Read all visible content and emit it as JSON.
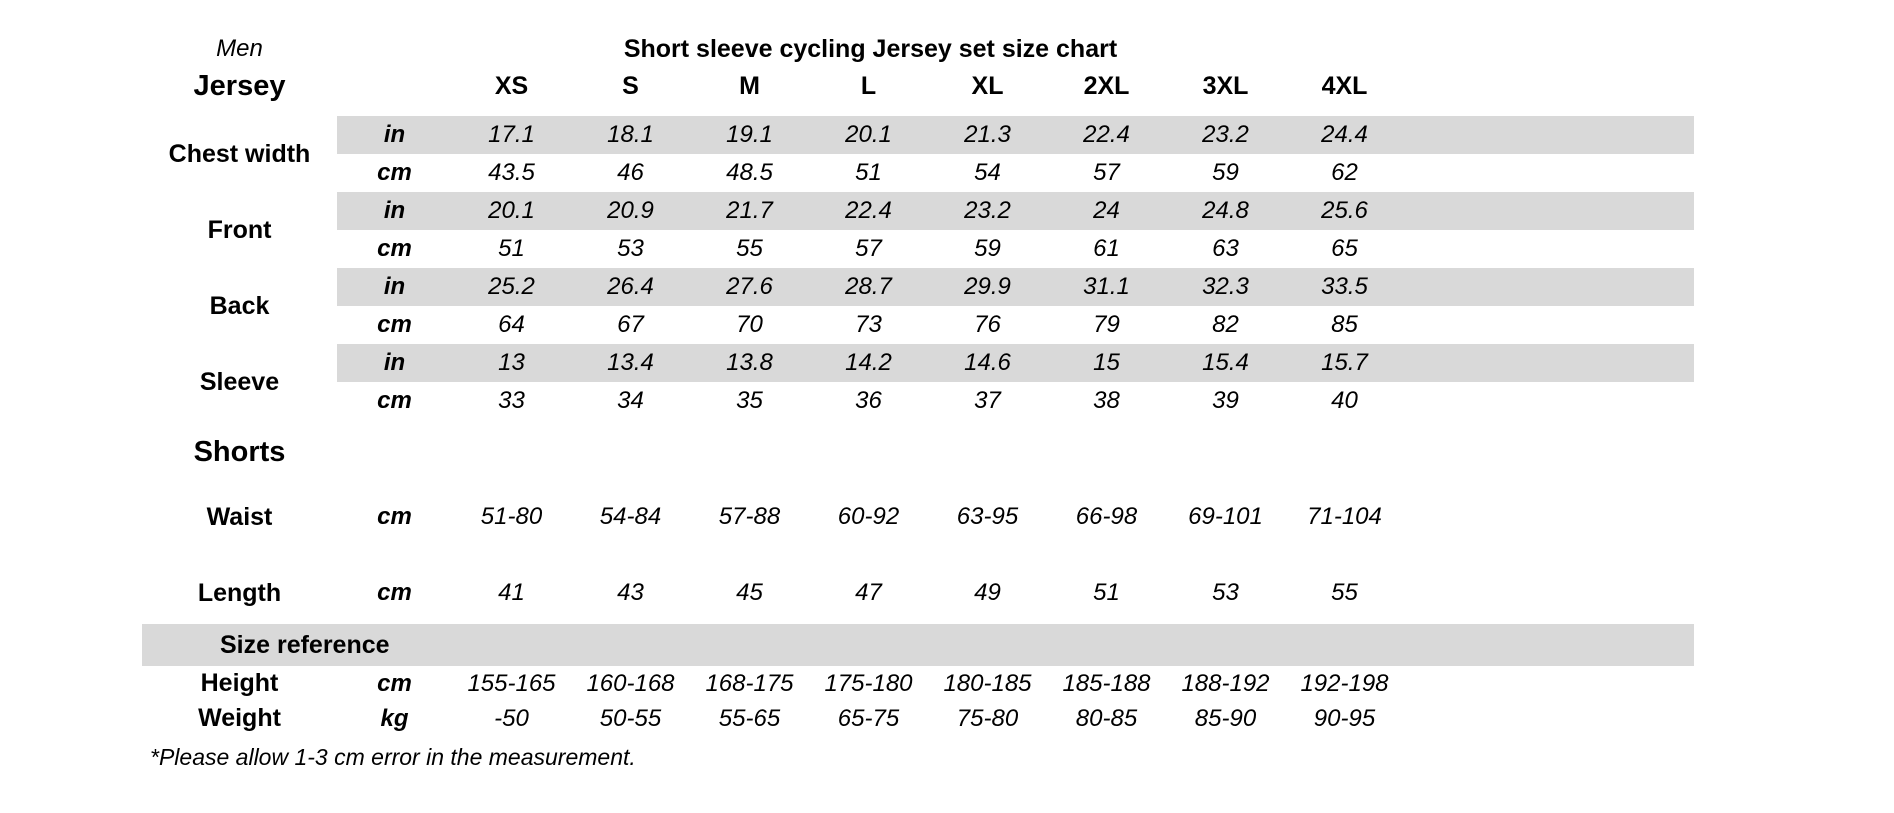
{
  "colors": {
    "band_gray": "#d9d9d9",
    "text": "#000000",
    "background": "#ffffff"
  },
  "chart_data": {
    "type": "table",
    "gender_label": "Men",
    "title": "Short sleeve cycling Jersey set size chart",
    "size_columns": [
      "XS",
      "S",
      "M",
      "L",
      "XL",
      "2XL",
      "3XL",
      "4XL"
    ],
    "jersey": {
      "heading": "Jersey",
      "measures": [
        {
          "label": "Chest width",
          "rows": [
            {
              "unit": "in",
              "values": [
                "17.1",
                "18.1",
                "19.1",
                "20.1",
                "21.3",
                "22.4",
                "23.2",
                "24.4"
              ]
            },
            {
              "unit": "cm",
              "values": [
                "43.5",
                "46",
                "48.5",
                "51",
                "54",
                "57",
                "59",
                "62"
              ]
            }
          ]
        },
        {
          "label": "Front",
          "rows": [
            {
              "unit": "in",
              "values": [
                "20.1",
                "20.9",
                "21.7",
                "22.4",
                "23.2",
                "24",
                "24.8",
                "25.6"
              ]
            },
            {
              "unit": "cm",
              "values": [
                "51",
                "53",
                "55",
                "57",
                "59",
                "61",
                "63",
                "65"
              ]
            }
          ]
        },
        {
          "label": "Back",
          "rows": [
            {
              "unit": "in",
              "values": [
                "25.2",
                "26.4",
                "27.6",
                "28.7",
                "29.9",
                "31.1",
                "32.3",
                "33.5"
              ]
            },
            {
              "unit": "cm",
              "values": [
                "64",
                "67",
                "70",
                "73",
                "76",
                "79",
                "82",
                "85"
              ]
            }
          ]
        },
        {
          "label": "Sleeve",
          "rows": [
            {
              "unit": "in",
              "values": [
                "13",
                "13.4",
                "13.8",
                "14.2",
                "14.6",
                "15",
                "15.4",
                "15.7"
              ]
            },
            {
              "unit": "cm",
              "values": [
                "33",
                "34",
                "35",
                "36",
                "37",
                "38",
                "39",
                "40"
              ]
            }
          ]
        }
      ]
    },
    "shorts": {
      "heading": "Shorts",
      "rows": [
        {
          "label": "Waist",
          "unit": "cm",
          "values": [
            "51-80",
            "54-84",
            "57-88",
            "60-92",
            "63-95",
            "66-98",
            "69-101",
            "71-104"
          ]
        },
        {
          "label": "Length",
          "unit": "cm",
          "values": [
            "41",
            "43",
            "45",
            "47",
            "49",
            "51",
            "53",
            "55"
          ]
        }
      ]
    },
    "size_reference": {
      "heading": "Size reference",
      "rows": [
        {
          "label": "Height",
          "unit": "cm",
          "values": [
            "155-165",
            "160-168",
            "168-175",
            "175-180",
            "180-185",
            "185-188",
            "188-192",
            "192-198"
          ]
        },
        {
          "label": "Weight",
          "unit": "kg",
          "values": [
            "-50",
            "50-55",
            "55-65",
            "65-75",
            "75-80",
            "80-85",
            "85-90",
            "90-95"
          ]
        }
      ]
    },
    "footnote": "*Please allow 1-3 cm error in the measurement."
  }
}
